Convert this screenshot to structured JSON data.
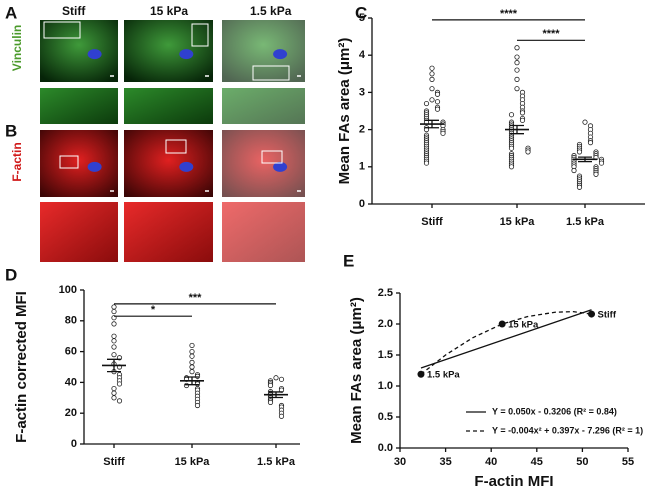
{
  "panels": [
    "A",
    "B",
    "C",
    "D",
    "E"
  ],
  "images": {
    "columns": [
      "Stiff",
      "15 kPa",
      "1.5 kPa"
    ],
    "rows": [
      "Vinculin",
      "F-actin"
    ]
  },
  "chart_data": [
    {
      "type": "dot",
      "y_label": "Mean FAs area (μm²)",
      "categories": [
        "Stiff",
        "15 kPa",
        "1.5 kPa"
      ],
      "points": [
        [
          3.65,
          3.5,
          3.35,
          3.1,
          3.0,
          2.95,
          2.8,
          2.75,
          2.7,
          2.6,
          2.55,
          2.5,
          2.45,
          2.4,
          2.35,
          2.3,
          2.25,
          2.2,
          2.2,
          2.15,
          2.1,
          2.05,
          2.0,
          2.0,
          1.95,
          1.9,
          1.85,
          1.8,
          1.75,
          1.7,
          1.65,
          1.6,
          1.55,
          1.5,
          1.45,
          1.4,
          1.35,
          1.3,
          1.25,
          1.2,
          1.15,
          1.1
        ],
        [
          4.2,
          3.95,
          3.8,
          3.6,
          3.35,
          3.1,
          3.0,
          2.9,
          2.8,
          2.7,
          2.6,
          2.5,
          2.45,
          2.4,
          2.3,
          2.25,
          2.2,
          2.15,
          2.1,
          2.05,
          2.0,
          1.95,
          1.9,
          1.85,
          1.8,
          1.75,
          1.7,
          1.65,
          1.6,
          1.55,
          1.5,
          1.5,
          1.45,
          1.4,
          1.35,
          1.3,
          1.25,
          1.2,
          1.15,
          1.1,
          1.05,
          1.0
        ],
        [
          2.2,
          2.1,
          2.0,
          1.9,
          1.8,
          1.7,
          1.65,
          1.6,
          1.55,
          1.5,
          1.45,
          1.4,
          1.4,
          1.35,
          1.3,
          1.3,
          1.25,
          1.25,
          1.2,
          1.2,
          1.15,
          1.15,
          1.1,
          1.1,
          1.05,
          1.0,
          1.0,
          0.95,
          0.9,
          0.9,
          0.85,
          0.8,
          0.75,
          0.7,
          0.65,
          0.6,
          0.55,
          0.5,
          0.45
        ]
      ],
      "means": [
        2.15,
        2.0,
        1.2
      ],
      "sem": [
        0.1,
        0.11,
        0.06
      ],
      "comparisons": [
        {
          "between": [
            0,
            2
          ],
          "y": 4.95,
          "label": "****"
        },
        {
          "between": [
            1,
            2
          ],
          "y": 4.4,
          "label": "****"
        }
      ],
      "ylim": [
        0,
        5
      ],
      "yticks": [
        0,
        1,
        2,
        3,
        4,
        5
      ]
    },
    {
      "type": "dot",
      "y_label": "F-actin corrected MFI",
      "categories": [
        "Stiff",
        "15 kPa",
        "1.5 kPa"
      ],
      "points": [
        [
          89,
          86,
          82,
          78,
          70,
          67,
          63,
          58,
          56,
          52,
          50,
          47,
          45,
          43,
          41,
          39,
          36,
          33,
          30,
          28
        ],
        [
          64,
          60,
          57,
          53,
          50,
          47,
          45,
          44,
          43,
          42,
          40,
          39,
          38,
          36,
          35,
          33,
          31,
          29,
          27,
          25
        ],
        [
          43,
          42,
          41,
          40,
          39,
          38,
          36,
          35,
          34,
          33,
          32,
          31,
          30,
          29,
          28,
          27,
          25,
          24,
          22,
          20,
          18
        ]
      ],
      "means": [
        51,
        41,
        32
      ],
      "sem": [
        4,
        2.5,
        1.8
      ],
      "comparisons": [
        {
          "between": [
            0,
            1
          ],
          "y": 83,
          "label": "*"
        },
        {
          "between": [
            0,
            2
          ],
          "y": 91,
          "label": "***"
        }
      ],
      "ylim": [
        0,
        100
      ],
      "yticks": [
        0,
        20,
        40,
        60,
        80,
        100
      ]
    },
    {
      "type": "scatter",
      "y_label": "Mean FAs area (μm²)",
      "x_label": "F-actin MFI",
      "x": [
        51,
        41.2,
        32.3
      ],
      "values": [
        2.16,
        2.0,
        1.19
      ],
      "point_labels": [
        "Stiff",
        "15 kPa",
        "1.5 kPa"
      ],
      "fits": [
        {
          "name": "Y = 0.050x - 0.3206 (R² = 0.84)",
          "dashed": false,
          "x": [
            32.3,
            51
          ],
          "values": [
            1.29,
            2.23
          ]
        },
        {
          "name": "Y = -0.004x² + 0.397x - 7.296 (R² = 1)",
          "dashed": true,
          "x": [
            32.3,
            35,
            38,
            41.2,
            44,
            47,
            49,
            51
          ],
          "values": [
            1.19,
            1.5,
            1.78,
            2.0,
            2.12,
            2.19,
            2.2,
            2.16
          ]
        }
      ],
      "xlim": [
        30,
        55
      ],
      "xticks": [
        30,
        35,
        40,
        45,
        50,
        55
      ],
      "ylim": [
        0,
        2.5
      ],
      "yticks": [
        {
          "value": 0,
          "label": "0.0"
        },
        0.5,
        {
          "value": 1,
          "label": "1.0"
        },
        1.5,
        {
          "value": 2,
          "label": "2.0"
        },
        2.5
      ]
    }
  ]
}
